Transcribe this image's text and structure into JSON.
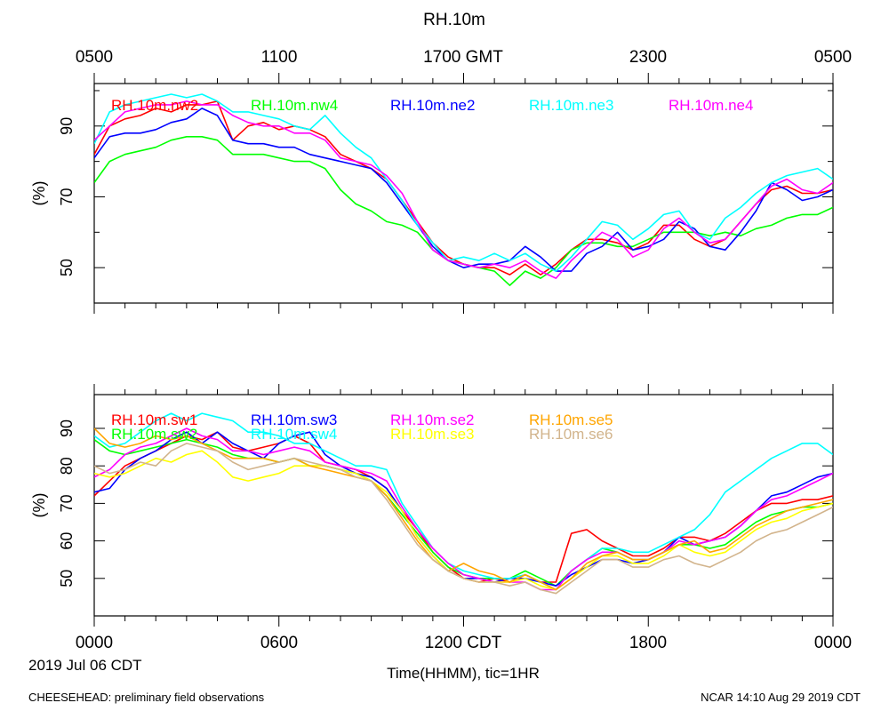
{
  "title": "RH.10m",
  "top_axis": {
    "tick_labels": [
      "0500",
      "1100",
      "1700 GMT",
      "2300",
      "0500"
    ]
  },
  "bottom_axis": {
    "tick_labels": [
      "0000",
      "0600",
      "1200 CDT",
      "1800",
      "0000"
    ],
    "date_label": "2019 Jul 06 CDT",
    "xlabel": "Time(HHMM), tic=1HR"
  },
  "footer": {
    "left": "CHEESEHEAD: preliminary field observations",
    "right": "NCAR 14:10 Aug 29 2019 CDT"
  },
  "chart_data": [
    {
      "type": "line",
      "panel": "upper",
      "ylabel": "(%)",
      "xlim": [
        0,
        24
      ],
      "ylim": [
        40,
        102
      ],
      "ytick_values": [
        50,
        70,
        90
      ],
      "x_unit": "hours since 0000 CDT",
      "x": [
        0,
        0.5,
        1,
        1.5,
        2,
        2.5,
        3,
        3.5,
        4,
        4.5,
        5,
        5.5,
        6,
        6.5,
        7,
        7.5,
        8,
        8.5,
        9,
        9.5,
        10,
        10.5,
        11,
        11.5,
        12,
        12.5,
        13,
        13.5,
        14,
        14.5,
        15,
        15.5,
        16,
        16.5,
        17,
        17.5,
        18,
        18.5,
        19,
        19.5,
        20,
        20.5,
        21,
        21.5,
        22,
        22.5,
        23,
        23.5,
        24
      ],
      "series": [
        {
          "name": "RH.10m.nw2",
          "color": "#ff0000",
          "values": [
            82,
            90,
            92,
            93,
            95,
            94,
            96,
            96,
            97,
            86,
            90,
            91,
            89,
            90,
            89,
            87,
            82,
            80,
            78,
            75,
            69,
            63,
            57,
            53,
            51,
            50,
            50,
            48,
            51,
            48,
            51,
            55,
            58,
            58,
            57,
            55,
            57,
            62,
            62,
            58,
            56,
            58,
            63,
            68,
            72,
            73,
            71,
            71,
            72
          ]
        },
        {
          "name": "RH.10m.nw4",
          "color": "#00ff00",
          "values": [
            74,
            80,
            82,
            83,
            84,
            86,
            87,
            87,
            86,
            82,
            82,
            82,
            81,
            80,
            80,
            78,
            72,
            68,
            66,
            63,
            62,
            60,
            55,
            52,
            51,
            50,
            49,
            45,
            49,
            47,
            50,
            55,
            57,
            57,
            56,
            56,
            58,
            60,
            60,
            60,
            59,
            60,
            59,
            61,
            62,
            64,
            65,
            65,
            67
          ]
        },
        {
          "name": "RH.10m.ne2",
          "color": "#0000ff",
          "values": [
            81,
            87,
            88,
            88,
            89,
            91,
            92,
            95,
            93,
            86,
            85,
            85,
            84,
            84,
            82,
            81,
            80,
            79,
            78,
            74,
            68,
            62,
            56,
            52,
            50,
            51,
            51,
            52,
            56,
            53,
            49,
            49,
            54,
            56,
            60,
            55,
            56,
            58,
            63,
            61,
            56,
            55,
            60,
            66,
            74,
            72,
            69,
            70,
            72
          ]
        },
        {
          "name": "RH.10m.ne3",
          "color": "#00ffff",
          "values": [
            85,
            94,
            96,
            97,
            98,
            99,
            98,
            99,
            97,
            94,
            94,
            93,
            92,
            90,
            89,
            93,
            88,
            84,
            81,
            75,
            69,
            62,
            57,
            52,
            53,
            52,
            54,
            52,
            54,
            51,
            49,
            53,
            58,
            63,
            62,
            58,
            61,
            65,
            66,
            60,
            58,
            64,
            67,
            71,
            74,
            76,
            77,
            78,
            75
          ]
        },
        {
          "name": "RH.10m.ne4",
          "color": "#ff00ff",
          "values": [
            86,
            90,
            94,
            95,
            96,
            96,
            97,
            96,
            96,
            93,
            91,
            90,
            90,
            88,
            88,
            86,
            81,
            80,
            79,
            76,
            71,
            63,
            55,
            52,
            51,
            50,
            51,
            50,
            52,
            49,
            47,
            52,
            56,
            60,
            58,
            53,
            55,
            61,
            64,
            60,
            57,
            58,
            63,
            68,
            73,
            75,
            72,
            71,
            74
          ]
        }
      ]
    },
    {
      "type": "line",
      "panel": "lower",
      "ylabel": "(%)",
      "xlim": [
        0,
        24
      ],
      "ylim": [
        40,
        99
      ],
      "ytick_values": [
        50,
        60,
        70,
        80,
        90
      ],
      "x_unit": "hours since 0000 CDT",
      "x": [
        0,
        0.5,
        1,
        1.5,
        2,
        2.5,
        3,
        3.5,
        4,
        4.5,
        5,
        5.5,
        6,
        6.5,
        7,
        7.5,
        8,
        8.5,
        9,
        9.5,
        10,
        10.5,
        11,
        11.5,
        12,
        12.5,
        13,
        13.5,
        14,
        14.5,
        15,
        15.5,
        16,
        16.5,
        17,
        17.5,
        18,
        18.5,
        19,
        19.5,
        20,
        20.5,
        21,
        21.5,
        22,
        22.5,
        23,
        23.5,
        24
      ],
      "series": [
        {
          "name": "RH.10m.sw1",
          "color": "#ff0000",
          "values": [
            72,
            76,
            80,
            82,
            84,
            86,
            88,
            87,
            89,
            85,
            84,
            85,
            86,
            88,
            86,
            81,
            80,
            79,
            77,
            74,
            68,
            63,
            57,
            53,
            50,
            49,
            50,
            49,
            51,
            49,
            49,
            62,
            63,
            60,
            58,
            56,
            56,
            58,
            61,
            61,
            60,
            62,
            65,
            68,
            70,
            70,
            71,
            71,
            72
          ]
        },
        {
          "name": "RH.10m.sw2",
          "color": "#00ff00",
          "values": [
            87,
            84,
            83,
            84,
            85,
            86,
            87,
            86,
            85,
            83,
            82,
            82,
            81,
            82,
            80,
            80,
            79,
            78,
            76,
            72,
            67,
            62,
            57,
            53,
            51,
            50,
            50,
            50,
            52,
            50,
            48,
            52,
            55,
            58,
            57,
            55,
            55,
            57,
            59,
            59,
            58,
            59,
            62,
            65,
            67,
            68,
            69,
            69,
            70
          ]
        },
        {
          "name": "RH.10m.sw3",
          "color": "#0000ff",
          "values": [
            73,
            74,
            79,
            82,
            84,
            87,
            89,
            86,
            89,
            86,
            84,
            82,
            86,
            88,
            89,
            83,
            80,
            78,
            77,
            74,
            68,
            61,
            56,
            52,
            50,
            50,
            49,
            50,
            50,
            49,
            48,
            51,
            53,
            55,
            55,
            54,
            55,
            57,
            61,
            59,
            60,
            61,
            64,
            68,
            72,
            73,
            75,
            77,
            78
          ]
        },
        {
          "name": "RH.10m.sw4",
          "color": "#00ffff",
          "values": [
            88,
            85,
            86,
            89,
            92,
            94,
            92,
            94,
            93,
            92,
            89,
            89,
            88,
            86,
            86,
            84,
            82,
            80,
            80,
            79,
            70,
            64,
            58,
            54,
            52,
            51,
            50,
            50,
            51,
            49,
            47,
            52,
            55,
            58,
            58,
            57,
            57,
            59,
            61,
            63,
            67,
            73,
            76,
            79,
            82,
            84,
            86,
            86,
            83
          ]
        },
        {
          "name": "RH.10m.se2",
          "color": "#ff00ff",
          "values": [
            77,
            79,
            83,
            85,
            86,
            88,
            90,
            88,
            87,
            84,
            84,
            83,
            84,
            85,
            84,
            81,
            80,
            79,
            78,
            76,
            69,
            63,
            58,
            54,
            51,
            50,
            49,
            49,
            49,
            47,
            47,
            52,
            55,
            57,
            57,
            55,
            55,
            57,
            60,
            59,
            60,
            61,
            64,
            68,
            71,
            72,
            74,
            76,
            78
          ]
        },
        {
          "name": "RH.10m.se3",
          "color": "#ffff00",
          "values": [
            78,
            77,
            78,
            80,
            82,
            81,
            83,
            84,
            81,
            77,
            76,
            77,
            78,
            80,
            80,
            80,
            79,
            78,
            76,
            73,
            68,
            61,
            56,
            52,
            50,
            49,
            49,
            49,
            50,
            48,
            47,
            50,
            53,
            56,
            56,
            54,
            54,
            56,
            59,
            57,
            56,
            57,
            60,
            63,
            65,
            66,
            68,
            69,
            70
          ]
        },
        {
          "name": "RH.10m.se5",
          "color": "#ffa500",
          "values": [
            90,
            86,
            85,
            86,
            88,
            87,
            88,
            86,
            84,
            82,
            82,
            82,
            81,
            82,
            80,
            79,
            78,
            77,
            76,
            72,
            66,
            60,
            55,
            52,
            54,
            52,
            51,
            49,
            51,
            49,
            47,
            50,
            54,
            56,
            57,
            55,
            55,
            57,
            59,
            60,
            57,
            58,
            61,
            64,
            66,
            68,
            69,
            70,
            71
          ]
        },
        {
          "name": "RH.10m.se6",
          "color": "#d2b48c",
          "values": [
            80,
            78,
            79,
            81,
            80,
            84,
            86,
            85,
            84,
            81,
            79,
            80,
            81,
            82,
            81,
            80,
            79,
            77,
            76,
            71,
            65,
            59,
            55,
            52,
            50,
            49,
            49,
            48,
            49,
            47,
            46,
            49,
            52,
            55,
            55,
            53,
            53,
            55,
            56,
            54,
            53,
            55,
            57,
            60,
            62,
            63,
            65,
            67,
            69
          ]
        }
      ]
    }
  ]
}
